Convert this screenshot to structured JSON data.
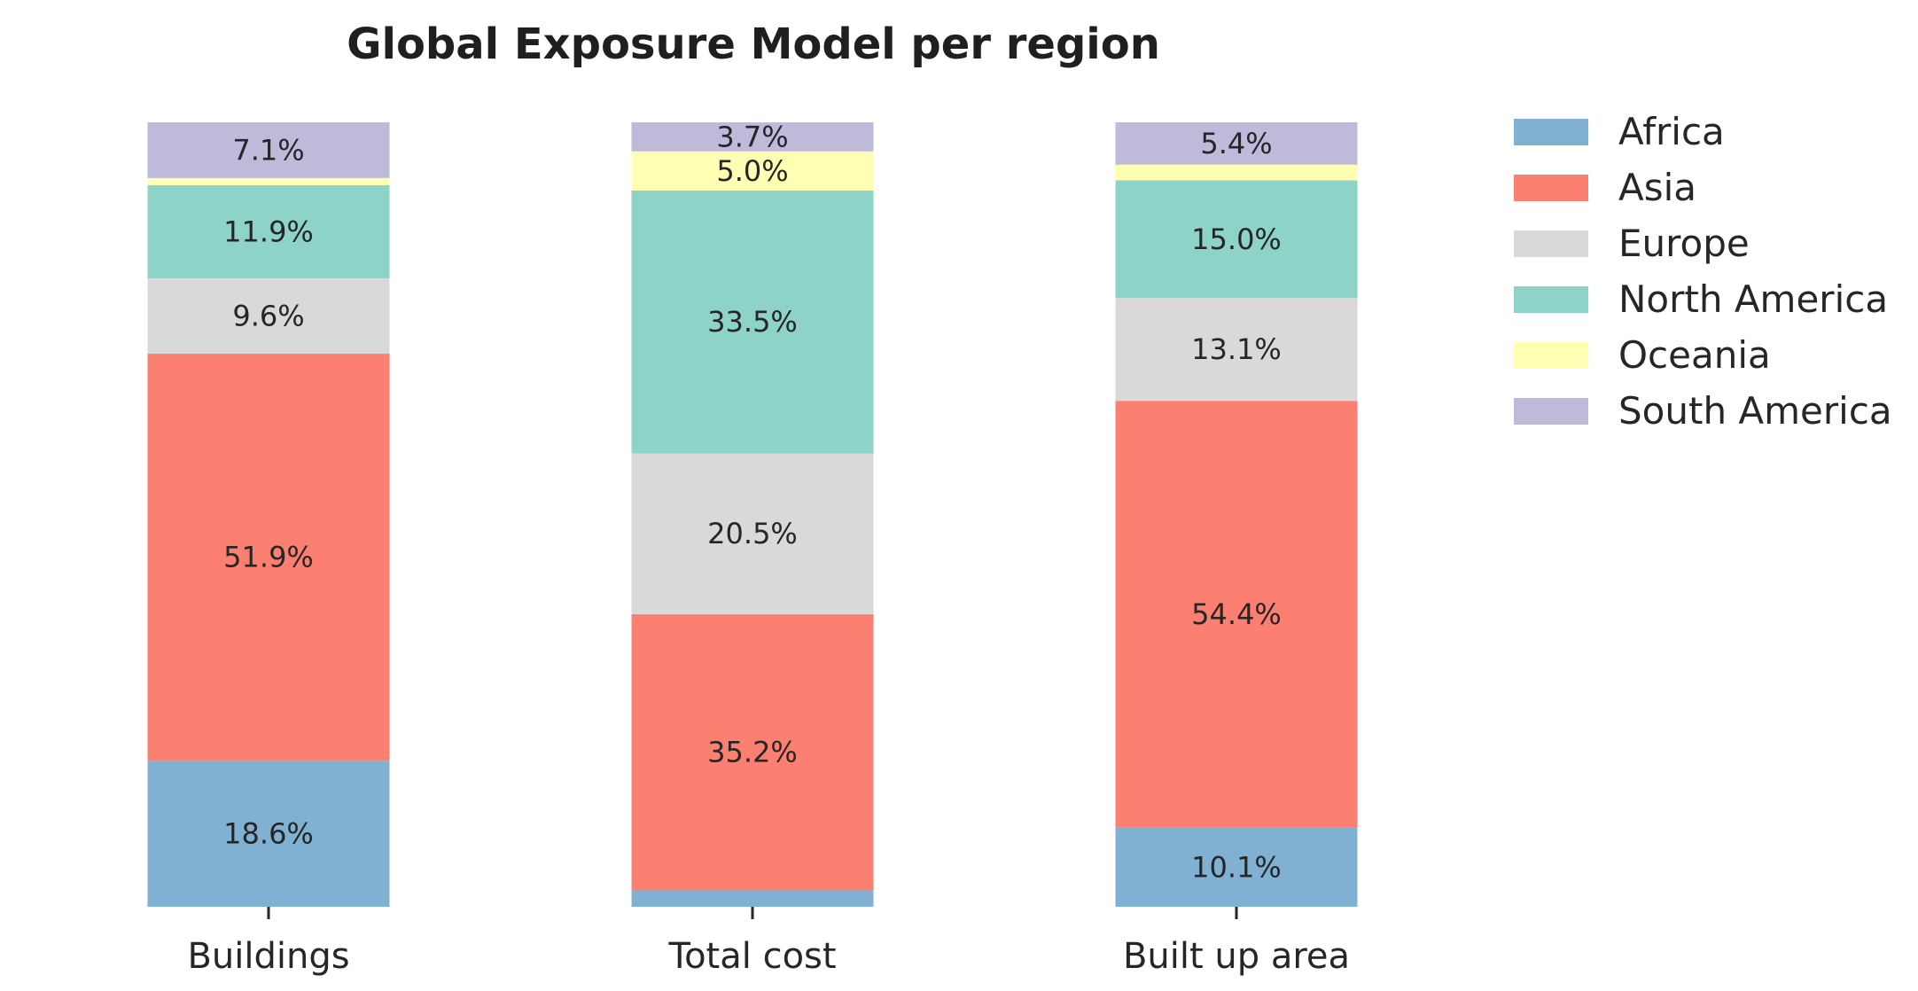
{
  "chart_data": {
    "type": "bar",
    "stacked": true,
    "normalized_percent": true,
    "title": "Global Exposure Model per region",
    "xlabel": "",
    "ylabel": "",
    "categories": [
      "Buildings",
      "Total cost",
      "Built up area"
    ],
    "series": [
      {
        "name": "Africa",
        "color": "#80b1d3",
        "values": [
          18.6,
          2.1,
          10.1
        ],
        "labels": [
          "18.6%",
          "",
          "10.1%"
        ]
      },
      {
        "name": "Asia",
        "color": "#fb8072",
        "values": [
          51.9,
          35.2,
          54.4
        ],
        "labels": [
          "51.9%",
          "35.2%",
          "54.4%"
        ]
      },
      {
        "name": "Europe",
        "color": "#d9d9d9",
        "values": [
          9.6,
          20.5,
          13.1
        ],
        "labels": [
          "9.6%",
          "20.5%",
          "13.1%"
        ]
      },
      {
        "name": "North America",
        "color": "#8dd3c7",
        "values": [
          11.9,
          33.5,
          15.0
        ],
        "labels": [
          "11.9%",
          "33.5%",
          "15.0%"
        ]
      },
      {
        "name": "Oceania",
        "color": "#ffffb3",
        "values": [
          0.9,
          5.0,
          2.0
        ],
        "labels": [
          "",
          "5.0%",
          ""
        ]
      },
      {
        "name": "South America",
        "color": "#bebada",
        "values": [
          7.1,
          3.7,
          5.4
        ],
        "labels": [
          "7.1%",
          "3.7%",
          "5.4%"
        ]
      }
    ],
    "ylim": [
      0,
      100
    ],
    "grid": false,
    "legend": "right"
  }
}
